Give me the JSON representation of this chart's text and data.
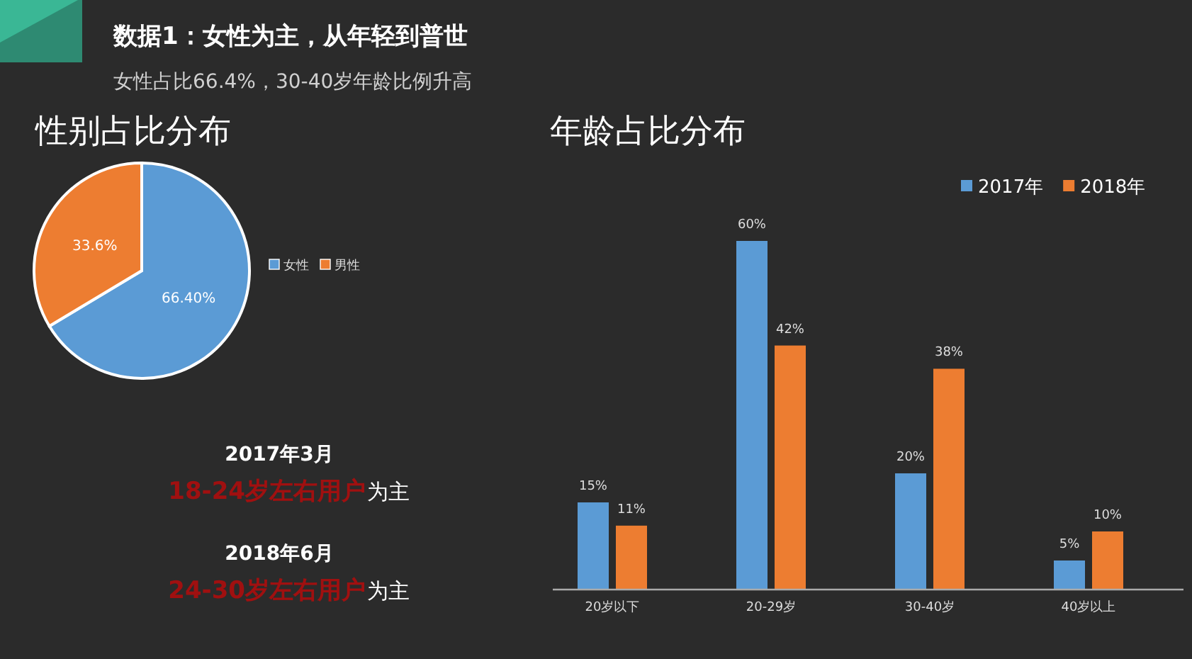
{
  "chart_data": [
    {
      "type": "other",
      "title": "数据1：女性为主，从年轻到普世",
      "subtitle": "女性占比66.4%，30-40岁年龄比例升高"
    },
    {
      "type": "pie",
      "title": "性别占比分布",
      "categories": [
        "女性",
        "男性"
      ],
      "values": [
        66.4,
        33.6
      ],
      "value_labels": [
        "66.40%",
        "33.6%"
      ],
      "colors": [
        "#5b9bd5",
        "#ed7d31"
      ],
      "legend": "right",
      "annotations": [
        "2017年3月",
        "18-24岁左右用户",
        "为主",
        "2018年6月",
        "24-30岁左右用户",
        "为主"
      ]
    },
    {
      "type": "bar",
      "title": "年龄占比分布",
      "categories": [
        "20岁以下",
        "20-29岁",
        "30-40岁",
        "40岁以上"
      ],
      "series": [
        {
          "name": "2017年",
          "color": "#5b9bd5",
          "values": [
            15,
            60,
            20,
            5
          ],
          "value_labels": [
            "15%",
            "60%",
            "20%",
            "5%"
          ]
        },
        {
          "name": "2018年",
          "color": "#ed7d31",
          "values": [
            11,
            42,
            38,
            10
          ],
          "value_labels": [
            "11%",
            "42%",
            "38%",
            "10%"
          ]
        }
      ],
      "legend": "top right"
    }
  ]
}
